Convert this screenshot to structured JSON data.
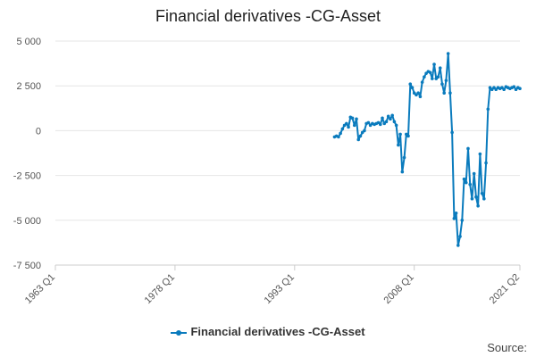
{
  "chart_data": {
    "type": "line",
    "title": "Financial derivatives -CG-Asset",
    "xlabel": "",
    "ylabel": "",
    "ylim": [
      -7500,
      5000
    ],
    "yticks": [
      5000,
      2500,
      0,
      -2500,
      -5000,
      -7500
    ],
    "ytick_labels": [
      "5 000",
      "2 500",
      "0",
      "-2 500",
      "-5 000",
      "-7 500"
    ],
    "xlim": [
      1963.0,
      2021.25
    ],
    "xticks": [
      1963.0,
      1978.0,
      1993.0,
      2008.0,
      2021.25
    ],
    "xtick_labels": [
      "1963 Q1",
      "1978 Q1",
      "1993 Q1",
      "2008 Q1",
      "2021 Q2"
    ],
    "grid": true,
    "legend_position": "bottom",
    "series": [
      {
        "name": "Financial derivatives -CG-Asset",
        "color": "#0a7bbd",
        "x": [
          1998.0,
          1998.25,
          1998.5,
          1998.75,
          1999.0,
          1999.25,
          1999.5,
          1999.75,
          2000.0,
          2000.25,
          2000.5,
          2000.75,
          2001.0,
          2001.25,
          2001.5,
          2001.75,
          2002.0,
          2002.25,
          2002.5,
          2002.75,
          2003.0,
          2003.25,
          2003.5,
          2003.75,
          2004.0,
          2004.25,
          2004.5,
          2004.75,
          2005.0,
          2005.25,
          2005.5,
          2005.75,
          2006.0,
          2006.25,
          2006.5,
          2006.75,
          2007.0,
          2007.25,
          2007.5,
          2007.75,
          2008.0,
          2008.25,
          2008.5,
          2008.75,
          2009.0,
          2009.25,
          2009.5,
          2009.75,
          2010.0,
          2010.25,
          2010.5,
          2010.75,
          2011.0,
          2011.25,
          2011.5,
          2011.75,
          2012.0,
          2012.25,
          2012.5,
          2012.75,
          2013.0,
          2013.25,
          2013.5,
          2013.75,
          2014.0,
          2014.25,
          2014.5,
          2014.75,
          2015.0,
          2015.25,
          2015.5,
          2015.75,
          2016.0,
          2016.25,
          2016.5,
          2016.75,
          2017.0,
          2017.25,
          2017.5,
          2017.75,
          2018.0,
          2018.25,
          2018.5,
          2018.75,
          2019.0,
          2019.25,
          2019.5,
          2019.75,
          2020.0,
          2020.25,
          2020.5,
          2020.75,
          2021.0,
          2021.25
        ],
        "values": [
          -350,
          -300,
          -350,
          -150,
          100,
          300,
          400,
          200,
          750,
          700,
          300,
          650,
          -500,
          -300,
          -100,
          0,
          400,
          450,
          300,
          400,
          350,
          400,
          450,
          350,
          700,
          400,
          500,
          800,
          650,
          850,
          500,
          300,
          -800,
          -200,
          -2300,
          -1500,
          -200,
          -300,
          2600,
          2400,
          2100,
          2000,
          2100,
          1900,
          2700,
          3000,
          3200,
          3300,
          3250,
          2900,
          3700,
          2900,
          3000,
          3500,
          2600,
          2100,
          2800,
          4300,
          2100,
          -100,
          -4900,
          -4600,
          -6400,
          -5900,
          -5000,
          -2700,
          -2900,
          -1000,
          -3000,
          -3800,
          -2400,
          -3700,
          -4200,
          -1300,
          -3500,
          -3800,
          -1800,
          1200,
          2400,
          2300,
          2400,
          2300,
          2400,
          2350,
          2400,
          2300,
          2450,
          2400,
          2350,
          2400,
          2450,
          2300,
          2400,
          2350
        ]
      }
    ]
  },
  "legend": {
    "label": "Financial derivatives -CG-Asset"
  },
  "source": {
    "label": "Source:"
  }
}
